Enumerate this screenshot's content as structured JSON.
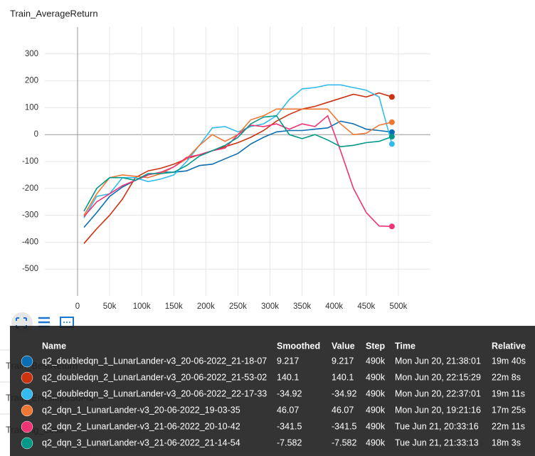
{
  "chart_data": {
    "type": "line",
    "title": "Train_AverageReturn",
    "x": [
      10000,
      30000,
      50000,
      70000,
      90000,
      110000,
      130000,
      150000,
      170000,
      190000,
      210000,
      230000,
      250000,
      270000,
      290000,
      310000,
      330000,
      350000,
      370000,
      390000,
      410000,
      430000,
      450000,
      470000,
      490000
    ],
    "series": [
      {
        "name": "q2_doubledqn_1_LunarLander-v3_20-06-2022_21-18-07",
        "color": "#0a6eb4",
        "values": [
          -345,
          -290,
          -230,
          -195,
          -170,
          -150,
          -140,
          -140,
          -135,
          -115,
          -110,
          -90,
          -70,
          -35,
          -10,
          10,
          15,
          15,
          20,
          25,
          50,
          40,
          20,
          15,
          9.217
        ]
      },
      {
        "name": "q2_doubledqn_2_LunarLander-v3_20-06-2022_21-53-02",
        "color": "#cc3311",
        "values": [
          -405,
          -350,
          -300,
          -240,
          -160,
          -135,
          -125,
          -110,
          -90,
          -75,
          -60,
          -45,
          -30,
          -10,
          15,
          50,
          75,
          95,
          105,
          120,
          135,
          150,
          140,
          155,
          140.1
        ]
      },
      {
        "name": "q2_doubledqn_3_LunarLander-v3_20-06-2022_22-17-33",
        "color": "#33bbee",
        "values": [
          -310,
          -230,
          -220,
          -160,
          -160,
          -175,
          -165,
          -150,
          -100,
          -40,
          25,
          30,
          10,
          30,
          40,
          70,
          130,
          170,
          175,
          185,
          185,
          175,
          165,
          140,
          -34.92
        ]
      },
      {
        "name": "q2_dqn_1_LunarLander-v3_20-06-2022_19-03-35",
        "color": "#ee7733",
        "values": [
          -300,
          -220,
          -160,
          -150,
          -155,
          -160,
          -145,
          -120,
          -90,
          -40,
          0,
          -25,
          0,
          55,
          70,
          95,
          95,
          95,
          95,
          95,
          40,
          0,
          5,
          35,
          46.07
        ]
      },
      {
        "name": "q2_dqn_2_LunarLander-v3_21-06-2022_20-10-42",
        "color": "#ee3377",
        "values": [
          -305,
          -250,
          -220,
          -190,
          -170,
          -150,
          -140,
          -120,
          -85,
          -75,
          -60,
          -50,
          0,
          35,
          30,
          40,
          20,
          40,
          30,
          70,
          -60,
          -200,
          -290,
          -340,
          -341.5
        ]
      },
      {
        "name": "q2_dqn_3_LunarLander-v3_21-06-2022_21-14-54",
        "color": "#009988",
        "values": [
          -285,
          -200,
          -160,
          -160,
          -170,
          -145,
          -145,
          -140,
          -115,
          -80,
          -60,
          -40,
          -10,
          40,
          65,
          70,
          0,
          -15,
          0,
          -20,
          -45,
          -40,
          -30,
          -25,
          -7.582
        ]
      }
    ],
    "xlim": [
      -51000,
      550000
    ],
    "ylim": [
      -600,
      400
    ],
    "xticks": [
      {
        "value": 0,
        "label": "0"
      },
      {
        "value": 50000,
        "label": "50k"
      },
      {
        "value": 100000,
        "label": "100k"
      },
      {
        "value": 150000,
        "label": "150k"
      },
      {
        "value": 200000,
        "label": "200k"
      },
      {
        "value": 250000,
        "label": "250k"
      },
      {
        "value": 300000,
        "label": "300k"
      },
      {
        "value": 350000,
        "label": "350k"
      },
      {
        "value": 400000,
        "label": "400k"
      },
      {
        "value": 450000,
        "label": "450k"
      },
      {
        "value": 500000,
        "label": "500k"
      }
    ],
    "yticks": [
      -500,
      -400,
      -300,
      -200,
      -100,
      0,
      100,
      200,
      300
    ],
    "grid": true
  },
  "background_cards": [
    "Train_BestReturn",
    "Train_EnvstepsSoFar",
    "Training_Loss"
  ],
  "tooltip": {
    "headers": [
      "Name",
      "Smoothed",
      "Value",
      "Step",
      "Time",
      "Relative"
    ],
    "rows": [
      [
        "q2_doubledqn_1_LunarLander-v3_20-06-2022_21-18-07",
        "9.217",
        "9.217",
        "490k",
        "Mon Jun 20, 21:38:01",
        "19m 40s"
      ],
      [
        "q2_doubledqn_2_LunarLander-v3_20-06-2022_21-53-02",
        "140.1",
        "140.1",
        "490k",
        "Mon Jun 20, 22:15:29",
        "22m 8s"
      ],
      [
        "q2_doubledqn_3_LunarLander-v3_20-06-2022_22-17-33",
        "-34.92",
        "-34.92",
        "490k",
        "Mon Jun 20, 22:37:01",
        "19m 11s"
      ],
      [
        "q2_dqn_1_LunarLander-v3_20-06-2022_19-03-35",
        "46.07",
        "46.07",
        "490k",
        "Mon Jun 20, 19:21:16",
        "17m 25s"
      ],
      [
        "q2_dqn_2_LunarLander-v3_21-06-2022_20-10-42",
        "-341.5",
        "-341.5",
        "490k",
        "Tue Jun 21, 20:33:16",
        "22m 11s"
      ],
      [
        "q2_dqn_3_LunarLander-v3_21-06-2022_21-14-54",
        "-7.582",
        "-7.582",
        "490k",
        "Tue Jun 21, 21:33:13",
        "18m 3s"
      ]
    ]
  }
}
